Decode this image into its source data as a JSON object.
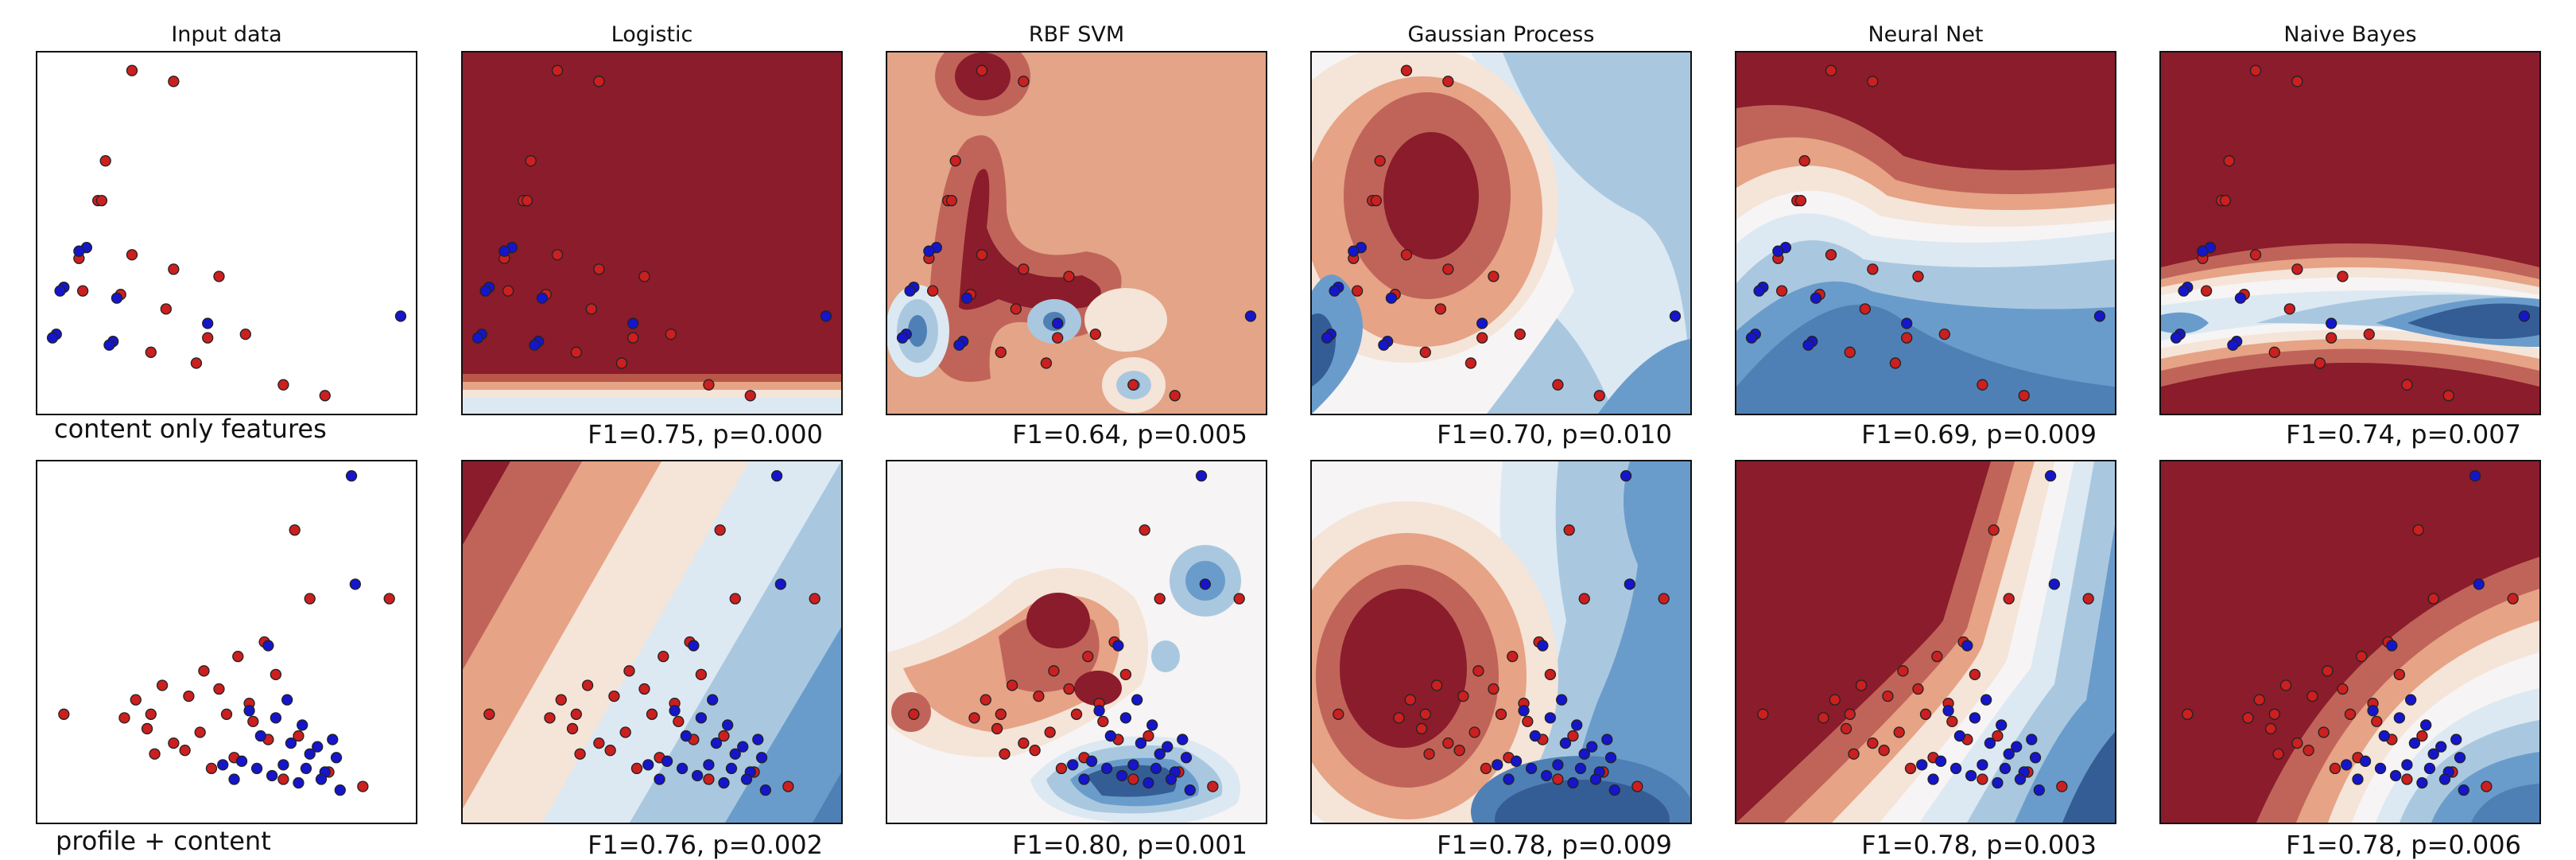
{
  "columns": [
    "Input data",
    "Logistic",
    "RBF SVM",
    "Gaussian Process",
    "Neural Net",
    "Naive Bayes"
  ],
  "row_labels": [
    "content only features",
    "profile + content"
  ],
  "scores": [
    [
      "F1=0.75, p=0.000",
      "F1=0.64, p=0.005",
      "F1=0.70, p=0.010",
      "F1=0.69, p=0.009",
      "F1=0.74, p=0.007"
    ],
    [
      "F1=0.76, p=0.002",
      "F1=0.80, p=0.001",
      "F1=0.78, p=0.009",
      "F1=0.78, p=0.003",
      "F1=0.78, p=0.006"
    ]
  ],
  "colors": {
    "class_red": "#cc1f1f",
    "class_blue": "#1515cc",
    "point_edge": "#222222"
  },
  "chart_data": [
    {
      "type": "scatter",
      "panel": "content only features",
      "xlim": [
        0,
        10
      ],
      "ylim": [
        0,
        10
      ],
      "grid": false,
      "series": [
        {
          "color": "#cc1f1f",
          "x": [
            2.5,
            3.6,
            1.8,
            1.6,
            1.7,
            2.5,
            3.6,
            4.8,
            3.4,
            4.5,
            3.0,
            4.2,
            5.5,
            6.5,
            7.6,
            1.2,
            1.1,
            2.2
          ],
          "y": [
            9.5,
            9.2,
            7.0,
            5.9,
            5.9,
            4.4,
            4.0,
            3.8,
            2.9,
            2.1,
            1.7,
            1.4,
            2.2,
            0.8,
            0.5,
            3.4,
            4.3,
            3.3
          ]
        },
        {
          "color": "#1515cc",
          "x": [
            1.3,
            1.1,
            0.7,
            0.6,
            0.5,
            0.4,
            2.1,
            2.0,
            1.9,
            4.5,
            9.6
          ],
          "y": [
            4.6,
            4.5,
            3.5,
            3.4,
            2.2,
            2.1,
            3.2,
            2.0,
            1.9,
            2.5,
            2.7
          ]
        }
      ]
    },
    {
      "type": "scatter",
      "panel": "profile + content",
      "xlim": [
        0,
        10
      ],
      "ylim": [
        0,
        10
      ],
      "grid": false,
      "series": [
        {
          "color": "#cc1f1f",
          "x": [
            0.7,
            2.3,
            2.6,
            3.0,
            3.6,
            4.3,
            5.0,
            5.3,
            6.0,
            6.3,
            6.8,
            7.2,
            3.3,
            4.0,
            4.8,
            5.7,
            6.1,
            9.3,
            8.6,
            6.5,
            5.2,
            4.6,
            3.9,
            3.1,
            2.9,
            4.4,
            5.6,
            6.9,
            7.7
          ],
          "y": [
            3.0,
            2.9,
            3.4,
            3.0,
            2.2,
            2.5,
            3.0,
            4.6,
            5.0,
            4.1,
            8.1,
            6.2,
            3.8,
            3.5,
            3.7,
            2.8,
            2.3,
            6.2,
            1.0,
            1.2,
            1.8,
            1.5,
            2.0,
            1.9,
            2.6,
            4.2,
            3.3,
            2.4,
            1.4
          ]
        },
        {
          "color": "#1515cc",
          "x": [
            8.3,
            8.4,
            6.1,
            5.6,
            6.6,
            7.0,
            7.4,
            7.6,
            7.9,
            5.4,
            5.8,
            6.2,
            6.5,
            6.9,
            7.2,
            7.5,
            7.8,
            8.0,
            5.9,
            6.3,
            6.7,
            7.1,
            4.9,
            5.2
          ],
          "y": [
            9.6,
            6.6,
            4.9,
            3.1,
            3.4,
            2.7,
            2.1,
            1.4,
            1.8,
            1.7,
            1.5,
            1.3,
            1.6,
            1.1,
            1.9,
            1.2,
            2.3,
            0.9,
            2.4,
            2.9,
            2.2,
            1.5,
            1.6,
            1.2
          ]
        }
      ]
    }
  ]
}
